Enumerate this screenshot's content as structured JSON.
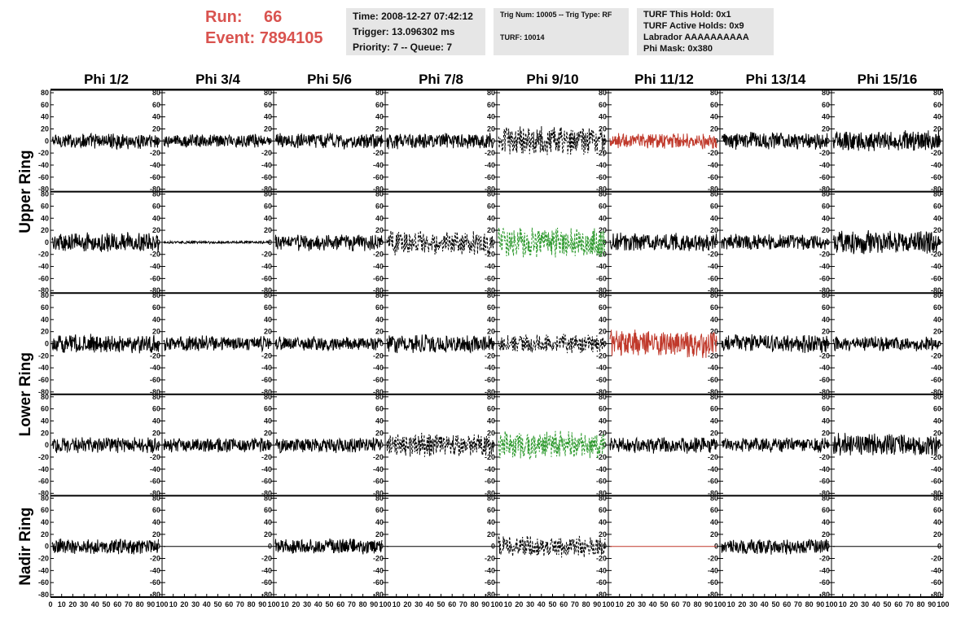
{
  "header": {
    "run_label": "Run:",
    "run_value": "66",
    "event_label": "Event:",
    "event_value": "7894105"
  },
  "info_time": {
    "time": "Time: 2008-12-27 07:42:12",
    "trigger": "Trigger: 13.096302 ms",
    "priority": "Priority: 7 -- Queue: 7"
  },
  "info_trig": {
    "trig": "Trig Num: 10005 -- Trig Type: RF",
    "turf": "TURF: 10014"
  },
  "info_turf": {
    "hold": "TURF This Hold: 0x1",
    "active": "TURF Active Holds: 0x9",
    "labrador": "Labrador AAAAAAAAAA",
    "phimask": "Phi Mask: 0x380"
  },
  "colors": {
    "header_accent": "#d9534f",
    "trace_default": "#000000",
    "trace_red": "#c0392b",
    "trace_green": "#2e9a2e",
    "info_bg": "#e6e6e6"
  },
  "chart_data": {
    "type": "line",
    "columns": [
      "Phi 1/2",
      "Phi 3/4",
      "Phi 5/6",
      "Phi 7/8",
      "Phi 9/10",
      "Phi 11/12",
      "Phi 13/14",
      "Phi 15/16"
    ],
    "ring_labels": [
      "Upper Ring",
      "Lower Ring",
      "Nadir Ring"
    ],
    "ylim": [
      -80,
      80
    ],
    "xlim": [
      0,
      100
    ],
    "y_ticks": [
      "80",
      "60",
      "40",
      "20",
      "0",
      "-20",
      "-40",
      "-60",
      "-80"
    ],
    "x_ticks": [
      "0",
      "10",
      "20",
      "30",
      "40",
      "50",
      "60",
      "70",
      "80",
      "90",
      "100"
    ],
    "grid": false,
    "rows": [
      [
        {
          "style": "solid",
          "color": "#000000",
          "amplitude": 12
        },
        {
          "style": "solid",
          "color": "#000000",
          "amplitude": 10
        },
        {
          "style": "solid",
          "color": "#000000",
          "amplitude": 12
        },
        {
          "style": "solid",
          "color": "#000000",
          "amplitude": 12
        },
        {
          "style": "dotted",
          "color": "#000000",
          "amplitude": 22
        },
        {
          "style": "solid",
          "color": "#c0392b",
          "amplitude": 12
        },
        {
          "style": "solid",
          "color": "#000000",
          "amplitude": 13
        },
        {
          "style": "solid",
          "color": "#000000",
          "amplitude": 16
        }
      ],
      [
        {
          "style": "solid",
          "color": "#000000",
          "amplitude": 15
        },
        {
          "style": "solid",
          "color": "#000000",
          "amplitude": 2
        },
        {
          "style": "solid",
          "color": "#000000",
          "amplitude": 13
        },
        {
          "style": "dotted",
          "color": "#000000",
          "amplitude": 18
        },
        {
          "style": "dotted",
          "color": "#2e9a2e",
          "amplitude": 24
        },
        {
          "style": "solid",
          "color": "#000000",
          "amplitude": 14
        },
        {
          "style": "solid",
          "color": "#000000",
          "amplitude": 12
        },
        {
          "style": "solid",
          "color": "#000000",
          "amplitude": 18
        }
      ],
      [
        {
          "style": "solid",
          "color": "#000000",
          "amplitude": 14
        },
        {
          "style": "solid",
          "color": "#000000",
          "amplitude": 12
        },
        {
          "style": "solid",
          "color": "#000000",
          "amplitude": 11
        },
        {
          "style": "solid",
          "color": "#000000",
          "amplitude": 14
        },
        {
          "style": "dotted",
          "color": "#000000",
          "amplitude": 14
        },
        {
          "style": "solid",
          "color": "#c0392b",
          "amplitude": 20
        },
        {
          "style": "solid",
          "color": "#000000",
          "amplitude": 14
        },
        {
          "style": "solid",
          "color": "#000000",
          "amplitude": 11
        }
      ],
      [
        {
          "style": "solid",
          "color": "#000000",
          "amplitude": 12
        },
        {
          "style": "solid",
          "color": "#000000",
          "amplitude": 11
        },
        {
          "style": "solid",
          "color": "#000000",
          "amplitude": 12
        },
        {
          "style": "dotted",
          "color": "#000000",
          "amplitude": 18
        },
        {
          "style": "dotted",
          "color": "#2e9a2e",
          "amplitude": 22
        },
        {
          "style": "solid",
          "color": "#000000",
          "amplitude": 12
        },
        {
          "style": "solid",
          "color": "#000000",
          "amplitude": 11
        },
        {
          "style": "solid",
          "color": "#000000",
          "amplitude": 18
        }
      ],
      [
        {
          "style": "solid",
          "color": "#000000",
          "amplitude": 12
        },
        {
          "style": "solid",
          "color": "#000000",
          "amplitude": 0
        },
        {
          "style": "solid",
          "color": "#000000",
          "amplitude": 12
        },
        {
          "style": "solid",
          "color": "#000000",
          "amplitude": 0
        },
        {
          "style": "dotted",
          "color": "#000000",
          "amplitude": 16
        },
        {
          "style": "solid",
          "color": "#c0392b",
          "amplitude": 0
        },
        {
          "style": "solid",
          "color": "#000000",
          "amplitude": 12
        },
        {
          "style": "solid",
          "color": "#000000",
          "amplitude": 0
        }
      ]
    ]
  }
}
